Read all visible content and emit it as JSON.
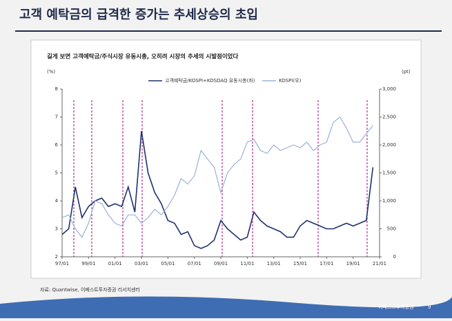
{
  "slide_title": "고객 예탁금의 급격한 증가는 추세상승의 초입",
  "footer": "이베스트투자증권",
  "page_number": "9",
  "chart_data": {
    "type": "line",
    "title": "길게 보면 고객예탁금/주식시장 유동시총, 오히려 시장의 추세의 시발점이었다",
    "y_unit": "(%)",
    "y2_unit": "(pt)",
    "source": "자료: Quantwise, 이베스트투자증권 리서치센터",
    "x": [
      "97/01",
      null,
      null,
      null,
      "99/01",
      null,
      null,
      null,
      "01/01",
      null,
      null,
      null,
      "03/01",
      null,
      null,
      null,
      "05/01",
      null,
      null,
      null,
      "07/01",
      null,
      null,
      null,
      "09/01",
      null,
      null,
      null,
      "11/01",
      null,
      null,
      null,
      "13/01",
      null,
      null,
      null,
      "15/01",
      null,
      null,
      null,
      "17/01",
      null,
      null,
      null,
      "19/01",
      null,
      null,
      null,
      "21/01"
    ],
    "series": [
      {
        "name": "고객예탁금/KOSPI+KOSDAQ 유동시총(좌)",
        "color": "#1f2f6e",
        "axis": "y",
        "values": [
          2.8,
          3.0,
          4.5,
          3.4,
          3.8,
          4.0,
          4.1,
          3.8,
          3.9,
          3.8,
          4.5,
          3.6,
          6.5,
          5.0,
          4.3,
          3.9,
          3.3,
          3.2,
          2.8,
          2.9,
          2.4,
          2.3,
          2.4,
          2.6,
          3.3,
          3.0,
          2.8,
          2.6,
          2.7,
          3.6,
          3.3,
          3.1,
          3.0,
          2.9,
          2.7,
          2.7,
          3.1,
          3.3,
          3.2,
          3.1,
          3.0,
          3.0,
          3.1,
          3.2,
          3.1,
          3.2,
          3.3,
          5.2,
          null
        ]
      },
      {
        "name": "KOSPI(우)",
        "color": "#9bb0d8",
        "axis": "y2",
        "values": [
          700,
          750,
          500,
          350,
          600,
          1000,
          950,
          750,
          600,
          550,
          750,
          750,
          600,
          700,
          850,
          750,
          900,
          1100,
          1400,
          1300,
          1450,
          1900,
          1750,
          1600,
          1150,
          1500,
          1650,
          1750,
          2050,
          2100,
          1900,
          1850,
          2000,
          1900,
          1950,
          2000,
          1950,
          2050,
          1900,
          2000,
          2050,
          2400,
          2500,
          2300,
          2050,
          2050,
          2200,
          2350,
          null
        ]
      }
    ],
    "ylim": [
      2,
      8
    ],
    "yticks": [
      2,
      3,
      4,
      5,
      6,
      7,
      8
    ],
    "y2lim": [
      0,
      3000
    ],
    "y2ticks": [
      0,
      500,
      {
        "value": 1000,
        "label": "1,000"
      },
      {
        "value": 1500,
        "label": "1,500"
      },
      {
        "value": 2000,
        "label": "2,000"
      },
      {
        "value": 2500,
        "label": "2,500"
      },
      {
        "value": 3000,
        "label": "3,000"
      }
    ],
    "legend": "top"
  }
}
